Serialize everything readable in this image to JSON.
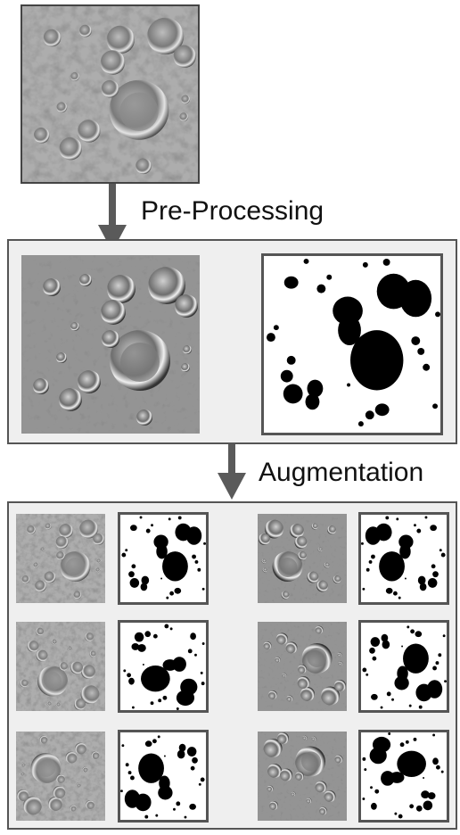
{
  "labels": {
    "preprocessing": "Pre-Processing",
    "augmentation": "Augmentation"
  },
  "colors": {
    "panel_bg": "#efefef",
    "border": "#555555",
    "arrow": "#5a5a5a",
    "mask_fill": "#000000"
  },
  "stages": [
    {
      "name": "raw-input",
      "count": 1
    },
    {
      "name": "preprocessed-pair",
      "count": 1
    },
    {
      "name": "augmented-pairs",
      "count": 6
    }
  ]
}
